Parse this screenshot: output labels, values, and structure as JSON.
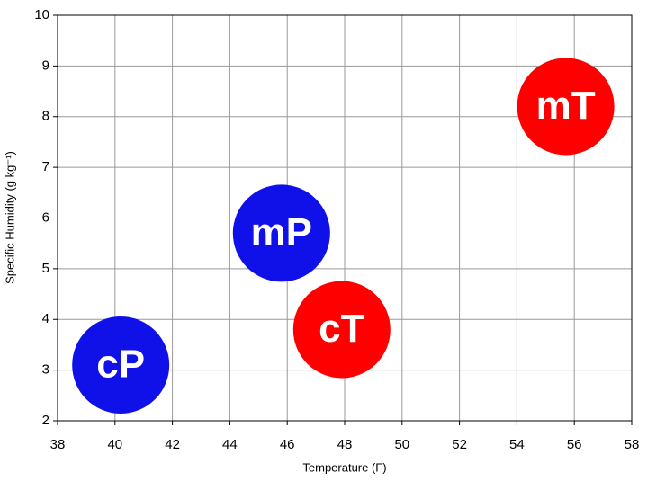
{
  "chart_data": {
    "type": "scatter",
    "x_label": "Temperature (F)",
    "y_label": "Specific Humidity (g kg⁻¹)",
    "xlim": [
      38,
      58
    ],
    "ylim": [
      2,
      10
    ],
    "xticks": [
      38,
      40,
      42,
      44,
      46,
      48,
      50,
      52,
      54,
      56,
      58
    ],
    "yticks": [
      2,
      3,
      4,
      5,
      6,
      7,
      8,
      9,
      10
    ],
    "grid": true,
    "series": [
      {
        "name": "cP",
        "color": "#1010e8",
        "x": [
          40.2
        ],
        "values": [
          3.1
        ]
      },
      {
        "name": "mP",
        "color": "#1010e8",
        "x": [
          45.8
        ],
        "values": [
          5.7
        ]
      },
      {
        "name": "cT",
        "color": "#ff0000",
        "x": [
          47.9
        ],
        "values": [
          3.8
        ]
      },
      {
        "name": "mT",
        "color": "#ff0000",
        "x": [
          55.7
        ],
        "values": [
          8.2
        ]
      }
    ]
  }
}
